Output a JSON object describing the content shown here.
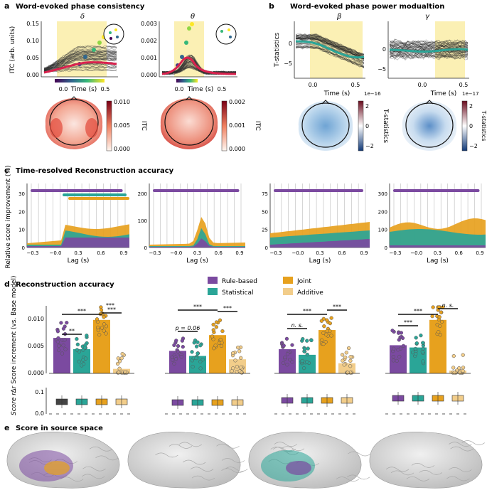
{
  "panels": {
    "a": {
      "letter": "a",
      "title": "Word-evoked phase consistency",
      "sub1": "δ",
      "sub2": "θ",
      "ylabel": "ITC (arb. units)",
      "xlabel": "Time (s)",
      "yticks1": [
        "0.00",
        "0.05",
        "0.10",
        "0.15"
      ],
      "yticks2": [
        "0.000",
        "0.001",
        "0.002",
        "0.003"
      ],
      "xticks": [
        "0.0",
        "0.5"
      ],
      "cbar_label": "ITC",
      "cbar1": [
        "0.010",
        "0.005",
        "0.000"
      ],
      "cbar2": [
        "0.002",
        "0.001",
        "0.000"
      ]
    },
    "b": {
      "letter": "b",
      "title": "Word-evoked phase power modualtion",
      "sub1": "β",
      "sub2": "γ",
      "ylabel": "T-statistics",
      "xlabel": "Time (s)",
      "yticks1": [
        "0",
        "−5"
      ],
      "yticks2": [
        "0",
        "−5"
      ],
      "xticks": [
        "0.0",
        "0.5"
      ],
      "offset1": "1e−16",
      "offset2": "1e−17",
      "cbar_label": "T-statistics",
      "cbar1": [
        "2",
        "0",
        "−2"
      ],
      "cbar2": [
        "2",
        "0",
        "−2"
      ]
    },
    "c": {
      "letter": "c",
      "title": "Time-resolved Reconstruction accuracy",
      "ylabel": "Relative score improvement (%)",
      "xlabel": "Lag (s)",
      "xticks": [
        "−0.3",
        "−0.0",
        "0.3",
        "0.6",
        "0.9"
      ],
      "y1": [
        "0",
        "10",
        "20",
        "30"
      ],
      "y2": [
        "0",
        "100",
        "200"
      ],
      "y3": [
        "0",
        "25",
        "50",
        "75"
      ],
      "y4": [
        "0",
        "100",
        "200",
        "300"
      ]
    },
    "d": {
      "letter": "d",
      "title": "Reconstruction accuracy",
      "ylabel": "Δr Score increment (vs. Base model)",
      "ylabel2": "Score  r",
      "yticks": [
        "0.000",
        "0.005",
        "0.010"
      ],
      "yticks2": [
        "0.0",
        "0.1"
      ],
      "legend": [
        "Rule-based",
        "Joint",
        "Statistical",
        "Additive"
      ],
      "sig": [
        "***",
        "**",
        "***",
        "***",
        "p = 0.06",
        "***",
        "***",
        "n. s.",
        "***",
        "***",
        "***",
        "n. s.",
        "***"
      ]
    },
    "e": {
      "letter": "e",
      "title": "Score in source space"
    }
  },
  "chart_data": {
    "type": "bar",
    "categories": [
      "Rule-based",
      "Statistical",
      "Joint",
      "Additive"
    ],
    "series": [
      {
        "values": [
          0.0063,
          0.0043,
          0.0095,
          0.0008
        ]
      },
      {
        "values": [
          0.004,
          0.0031,
          0.0068,
          0.0025
        ]
      },
      {
        "values": [
          0.0043,
          0.0033,
          0.0077,
          0.0018
        ]
      },
      {
        "values": [
          0.005,
          0.0046,
          0.0095,
          0.0005
        ]
      }
    ],
    "ylim": [
      0,
      0.012
    ]
  },
  "colors": {
    "rule": "#7b4aa0",
    "stat": "#2aa597",
    "joint": "#e7a11e",
    "add": "#f2cd8a",
    "base": "#444444",
    "hilite": "#fbf0b4"
  }
}
